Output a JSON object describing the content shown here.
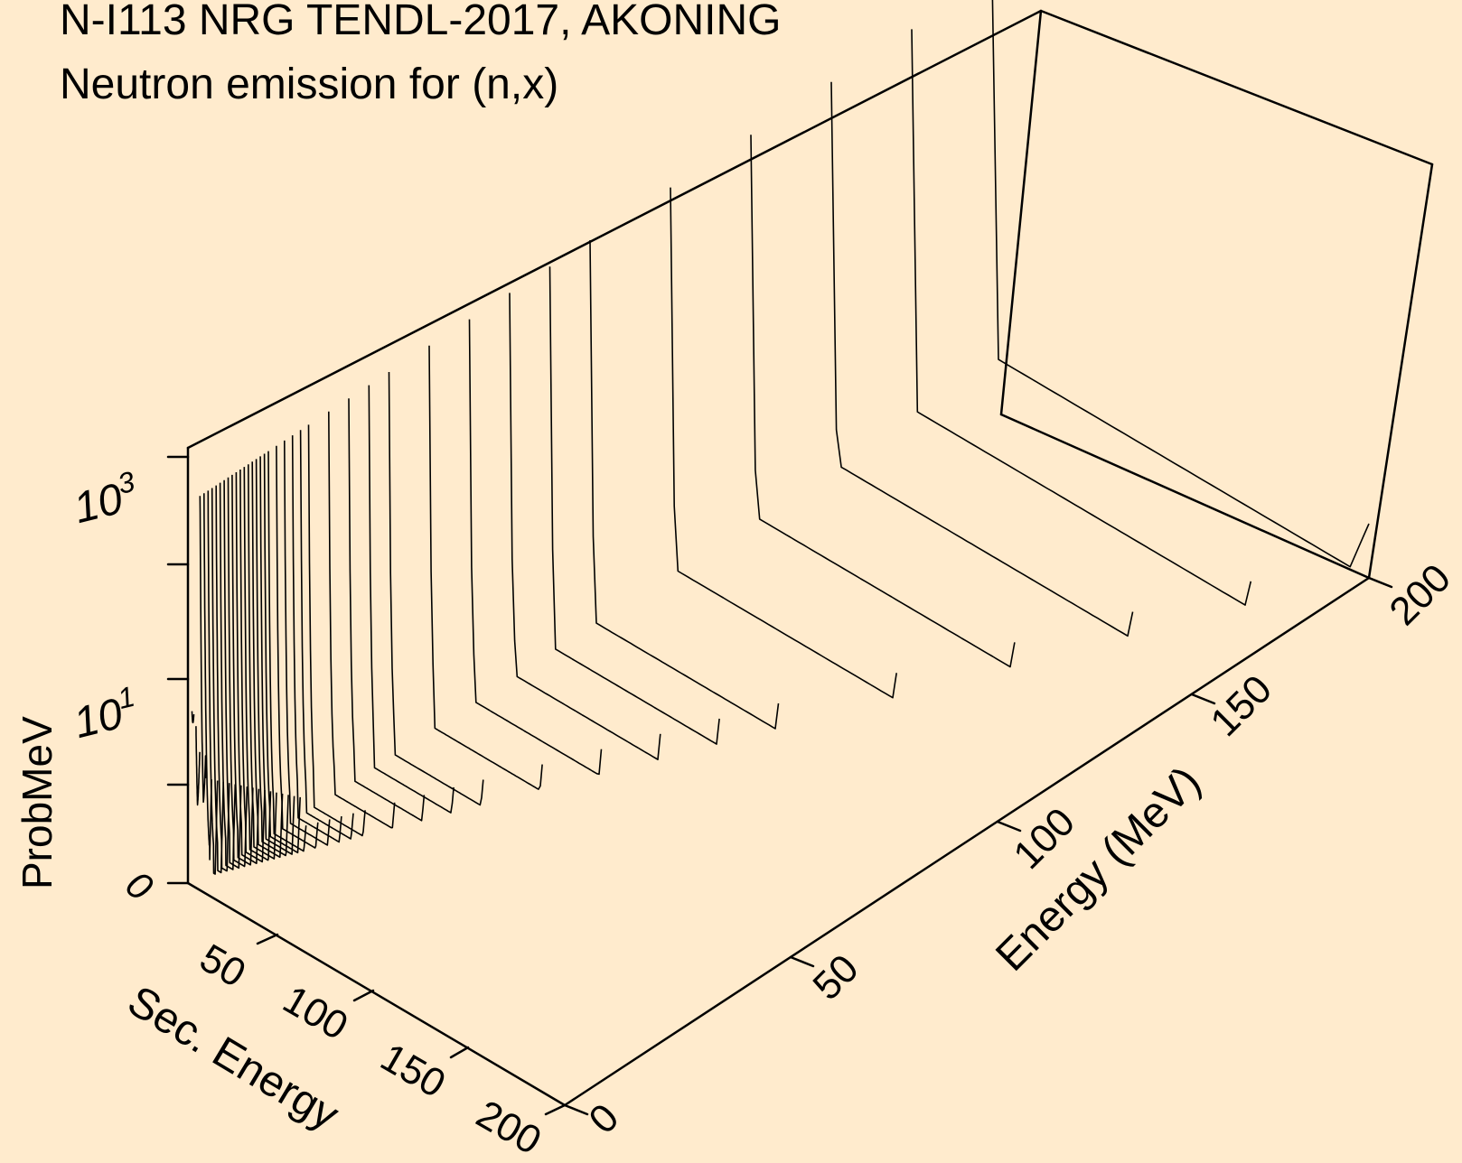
{
  "title": "N-I113 NRG TENDL-2017, AKONING",
  "subtitle": "Neutron emission for (n,x)",
  "chart_data": {
    "type": "surface-3d",
    "title": "N-I113 NRG TENDL-2017, AKONING",
    "subtitle": "Neutron emission for (n,x)",
    "x_axis": {
      "label": "Sec. Energy",
      "range": [
        0,
        200
      ],
      "ticks": [
        "0",
        "50",
        "100",
        "150",
        "200"
      ]
    },
    "y_axis": {
      "label": "Energy (MeV)",
      "range": [
        0,
        200
      ],
      "ticks": [
        "0",
        "50",
        "100",
        "150",
        "200"
      ]
    },
    "z_axis": {
      "label": "ProbMeV",
      "scale": "log",
      "ticks": [
        "0",
        "10",
        "10"
      ],
      "tick_exponents": [
        "",
        "1",
        "3"
      ]
    },
    "incident_energies_mev": [
      1,
      2,
      3,
      4,
      5,
      6,
      7,
      8,
      9,
      10,
      11,
      12,
      13,
      14,
      15,
      16,
      17,
      18,
      19,
      20,
      22,
      24,
      26,
      28,
      30,
      35,
      40,
      45,
      50,
      60,
      70,
      80,
      90,
      100,
      120,
      140,
      160,
      180,
      200
    ],
    "grid": false
  }
}
